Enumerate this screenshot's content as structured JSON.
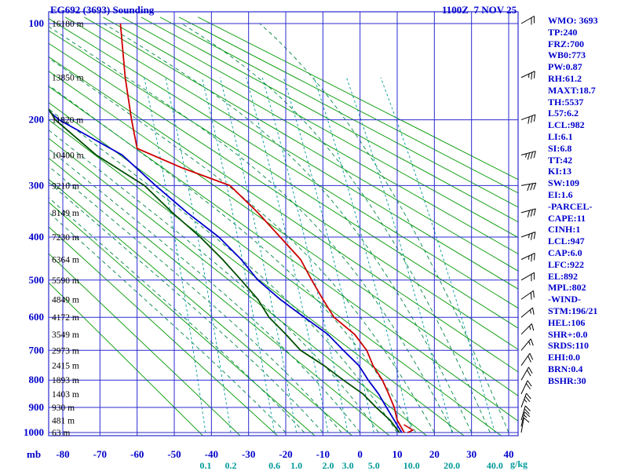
{
  "header": {
    "title": "EG692 (3693) Sounding",
    "datetime": "1100Z  7 NOV 25"
  },
  "indices": {
    "lines": [
      "WMO: 3693",
      "TP:240",
      "FRZ:700",
      "WB0:773",
      "PW:0.87",
      "RH:61.2",
      "MAXT:18.7",
      "TH:5537",
      "L57:6.2",
      "LCL:982",
      "LI:6.1",
      "SI:6.8",
      "TT:42",
      "KI:13",
      "SW:109",
      "EI:1.6",
      "-PARCEL-",
      "CAPE:11",
      "CINH:1",
      "LCL:947",
      "CAP:6.0",
      "LFC:922",
      "EL:892",
      "MPL:802",
      "-WIND-",
      "STM:196/21",
      "HEL:106",
      "SHR+:0.0",
      "SRDS:110",
      "EHI:0.0",
      "BRN:0.4",
      "BSHR:30"
    ]
  },
  "chart_data": {
    "type": "line",
    "chart_kind": "stuve_sounding",
    "title": "EG692 (3693) Sounding",
    "pressure_axis_label": "mb",
    "mixing_axis_label": "g/kg",
    "pressure_ticks_mb": [
      100,
      200,
      300,
      400,
      500,
      600,
      700,
      800,
      900,
      1000
    ],
    "pressure_range_mb": [
      95,
      1030
    ],
    "temp_ticks_c": [
      -80,
      -70,
      -60,
      -50,
      -40,
      -30,
      -20,
      -10,
      0,
      10,
      20,
      30,
      40
    ],
    "temp_range_c": [
      -84,
      42
    ],
    "height_labels": [
      {
        "p": 100,
        "text": "16180 m"
      },
      {
        "p": 150,
        "text": "13850 m"
      },
      {
        "p": 200,
        "text": "11820 m"
      },
      {
        "p": 250,
        "text": "10400 m"
      },
      {
        "p": 300,
        "text": "9210 m"
      },
      {
        "p": 350,
        "text": "8149 m"
      },
      {
        "p": 400,
        "text": "7230 m"
      },
      {
        "p": 450,
        "text": "6364 m"
      },
      {
        "p": 500,
        "text": "5590 m"
      },
      {
        "p": 550,
        "text": "4849 m"
      },
      {
        "p": 600,
        "text": "4172 m"
      },
      {
        "p": 650,
        "text": "3549 m"
      },
      {
        "p": 700,
        "text": "2973 m"
      },
      {
        "p": 750,
        "text": "2415 m"
      },
      {
        "p": 800,
        "text": "1893 m"
      },
      {
        "p": 850,
        "text": "1403 m"
      },
      {
        "p": 900,
        "text": "930 m"
      },
      {
        "p": 950,
        "text": "481 m"
      },
      {
        "p": 1000,
        "text": "63 m"
      }
    ],
    "mixing_ratio_lines_gkg": [
      0.1,
      0.2,
      0.6,
      1.0,
      2.0,
      3.0,
      5.0,
      10.0,
      20.0,
      40.0
    ],
    "dry_adiabats_theta_k": {
      "start": 230,
      "end": 450,
      "step": 10
    },
    "moist_adiabats_start_c": {
      "start": -20,
      "end": 40,
      "step": 5
    },
    "series": [
      {
        "name": "temperature",
        "points": [
          [
            100,
            -64.5
          ],
          [
            150,
            -63.2
          ],
          [
            200,
            -61.5
          ],
          [
            240,
            -60
          ],
          [
            270,
            -48
          ],
          [
            300,
            -35
          ],
          [
            350,
            -27.5
          ],
          [
            400,
            -21.5
          ],
          [
            450,
            -16
          ],
          [
            500,
            -13
          ],
          [
            550,
            -10
          ],
          [
            600,
            -7
          ],
          [
            650,
            -1.5
          ],
          [
            700,
            1.8
          ],
          [
            750,
            3.5
          ],
          [
            800,
            6
          ],
          [
            850,
            7.7
          ],
          [
            900,
            9.2
          ],
          [
            950,
            10
          ],
          [
            1000,
            11.9
          ]
        ]
      },
      {
        "name": "wet_bulb",
        "points": [
          [
            190,
            -83.5
          ],
          [
            200,
            -81
          ],
          [
            250,
            -64
          ],
          [
            300,
            -55
          ],
          [
            350,
            -46.5
          ],
          [
            400,
            -38
          ],
          [
            450,
            -32
          ],
          [
            500,
            -27.5
          ],
          [
            550,
            -21.5
          ],
          [
            600,
            -15
          ],
          [
            650,
            -8.7
          ],
          [
            700,
            -4.5
          ],
          [
            750,
            -0.3
          ],
          [
            800,
            2.2
          ],
          [
            850,
            5
          ],
          [
            900,
            7.1
          ],
          [
            950,
            9.2
          ],
          [
            1000,
            11.2
          ]
        ]
      },
      {
        "name": "dewpoint",
        "points": [
          [
            185,
            -84
          ],
          [
            200,
            -82
          ],
          [
            250,
            -71
          ],
          [
            300,
            -58
          ],
          [
            350,
            -50.5
          ],
          [
            400,
            -43
          ],
          [
            450,
            -37
          ],
          [
            500,
            -32
          ],
          [
            550,
            -27.5
          ],
          [
            600,
            -24.5
          ],
          [
            650,
            -20
          ],
          [
            700,
            -16
          ],
          [
            750,
            -9.7
          ],
          [
            800,
            -4.5
          ],
          [
            850,
            0.8
          ],
          [
            900,
            4.3
          ],
          [
            950,
            8.1
          ],
          [
            1000,
            10.6
          ]
        ]
      },
      {
        "name": "surface_detail",
        "points": [
          [
            968,
            11.8
          ],
          [
            990,
            14.2
          ],
          [
            1000,
            12.8
          ]
        ]
      }
    ],
    "wind_barbs": [
      {
        "p": 100,
        "dir": 240,
        "spd": 20
      },
      {
        "p": 150,
        "dir": 245,
        "spd": 25
      },
      {
        "p": 200,
        "dir": 250,
        "spd": 30
      },
      {
        "p": 250,
        "dir": 255,
        "spd": 35
      },
      {
        "p": 300,
        "dir": 260,
        "spd": 30
      },
      {
        "p": 350,
        "dir": 255,
        "spd": 30
      },
      {
        "p": 400,
        "dir": 250,
        "spd": 25
      },
      {
        "p": 450,
        "dir": 245,
        "spd": 25
      },
      {
        "p": 500,
        "dir": 240,
        "spd": 20
      },
      {
        "p": 550,
        "dir": 235,
        "spd": 20
      },
      {
        "p": 600,
        "dir": 230,
        "spd": 15
      },
      {
        "p": 650,
        "dir": 225,
        "spd": 15
      },
      {
        "p": 700,
        "dir": 220,
        "spd": 15
      },
      {
        "p": 750,
        "dir": 215,
        "spd": 20
      },
      {
        "p": 800,
        "dir": 210,
        "spd": 20
      },
      {
        "p": 850,
        "dir": 205,
        "spd": 20
      },
      {
        "p": 900,
        "dir": 200,
        "spd": 25
      },
      {
        "p": 950,
        "dir": 196,
        "spd": 21
      },
      {
        "p": 975,
        "dir": 193,
        "spd": 15
      },
      {
        "p": 1000,
        "dir": 190,
        "spd": 10
      }
    ],
    "colors": {
      "grid": "#2b2bd0",
      "axis_label": "#0000cc",
      "dry_adiabat": "#009900",
      "moist_adiabat": "#008844",
      "mixing_ratio": "#009999",
      "temperature": "#cc0000",
      "wet_bulb": "#0000cc",
      "dewpoint": "#004d00",
      "heights": "#000000",
      "barbs": "#000000"
    }
  }
}
